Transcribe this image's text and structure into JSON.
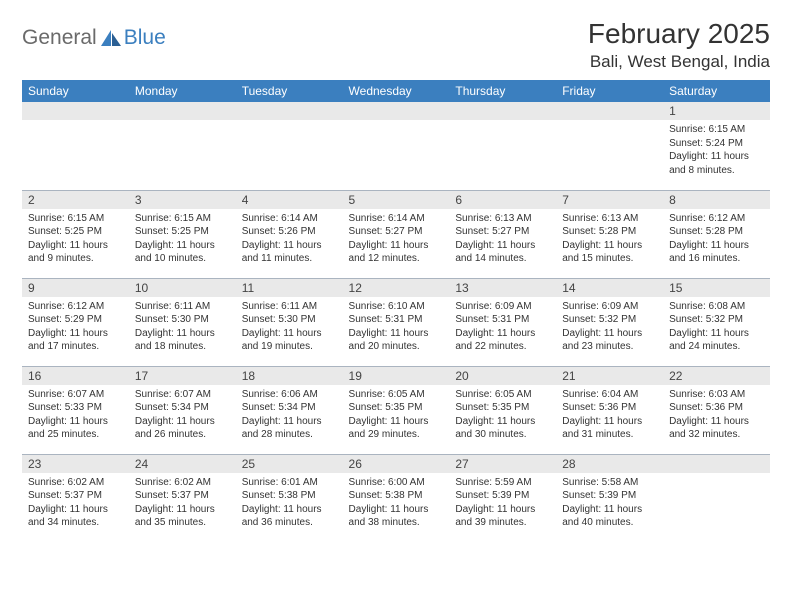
{
  "logo": {
    "word1": "General",
    "word2": "Blue",
    "sail_color": "#3b7fbf"
  },
  "title": "February 2025",
  "location": "Bali, West Bengal, India",
  "colors": {
    "header_bg": "#3b7fbf",
    "header_fg": "#ffffff",
    "daynum_bg": "#e9e9e9",
    "grid_line": "#aab4c0",
    "text": "#333333"
  },
  "day_headers": [
    "Sunday",
    "Monday",
    "Tuesday",
    "Wednesday",
    "Thursday",
    "Friday",
    "Saturday"
  ],
  "weeks": [
    [
      {
        "n": "",
        "lines": [
          "",
          "",
          "",
          ""
        ]
      },
      {
        "n": "",
        "lines": [
          "",
          "",
          "",
          ""
        ]
      },
      {
        "n": "",
        "lines": [
          "",
          "",
          "",
          ""
        ]
      },
      {
        "n": "",
        "lines": [
          "",
          "",
          "",
          ""
        ]
      },
      {
        "n": "",
        "lines": [
          "",
          "",
          "",
          ""
        ]
      },
      {
        "n": "",
        "lines": [
          "",
          "",
          "",
          ""
        ]
      },
      {
        "n": "1",
        "lines": [
          "Sunrise: 6:15 AM",
          "Sunset: 5:24 PM",
          "Daylight: 11 hours",
          "and 8 minutes."
        ]
      }
    ],
    [
      {
        "n": "2",
        "lines": [
          "Sunrise: 6:15 AM",
          "Sunset: 5:25 PM",
          "Daylight: 11 hours",
          "and 9 minutes."
        ]
      },
      {
        "n": "3",
        "lines": [
          "Sunrise: 6:15 AM",
          "Sunset: 5:25 PM",
          "Daylight: 11 hours",
          "and 10 minutes."
        ]
      },
      {
        "n": "4",
        "lines": [
          "Sunrise: 6:14 AM",
          "Sunset: 5:26 PM",
          "Daylight: 11 hours",
          "and 11 minutes."
        ]
      },
      {
        "n": "5",
        "lines": [
          "Sunrise: 6:14 AM",
          "Sunset: 5:27 PM",
          "Daylight: 11 hours",
          "and 12 minutes."
        ]
      },
      {
        "n": "6",
        "lines": [
          "Sunrise: 6:13 AM",
          "Sunset: 5:27 PM",
          "Daylight: 11 hours",
          "and 14 minutes."
        ]
      },
      {
        "n": "7",
        "lines": [
          "Sunrise: 6:13 AM",
          "Sunset: 5:28 PM",
          "Daylight: 11 hours",
          "and 15 minutes."
        ]
      },
      {
        "n": "8",
        "lines": [
          "Sunrise: 6:12 AM",
          "Sunset: 5:28 PM",
          "Daylight: 11 hours",
          "and 16 minutes."
        ]
      }
    ],
    [
      {
        "n": "9",
        "lines": [
          "Sunrise: 6:12 AM",
          "Sunset: 5:29 PM",
          "Daylight: 11 hours",
          "and 17 minutes."
        ]
      },
      {
        "n": "10",
        "lines": [
          "Sunrise: 6:11 AM",
          "Sunset: 5:30 PM",
          "Daylight: 11 hours",
          "and 18 minutes."
        ]
      },
      {
        "n": "11",
        "lines": [
          "Sunrise: 6:11 AM",
          "Sunset: 5:30 PM",
          "Daylight: 11 hours",
          "and 19 minutes."
        ]
      },
      {
        "n": "12",
        "lines": [
          "Sunrise: 6:10 AM",
          "Sunset: 5:31 PM",
          "Daylight: 11 hours",
          "and 20 minutes."
        ]
      },
      {
        "n": "13",
        "lines": [
          "Sunrise: 6:09 AM",
          "Sunset: 5:31 PM",
          "Daylight: 11 hours",
          "and 22 minutes."
        ]
      },
      {
        "n": "14",
        "lines": [
          "Sunrise: 6:09 AM",
          "Sunset: 5:32 PM",
          "Daylight: 11 hours",
          "and 23 minutes."
        ]
      },
      {
        "n": "15",
        "lines": [
          "Sunrise: 6:08 AM",
          "Sunset: 5:32 PM",
          "Daylight: 11 hours",
          "and 24 minutes."
        ]
      }
    ],
    [
      {
        "n": "16",
        "lines": [
          "Sunrise: 6:07 AM",
          "Sunset: 5:33 PM",
          "Daylight: 11 hours",
          "and 25 minutes."
        ]
      },
      {
        "n": "17",
        "lines": [
          "Sunrise: 6:07 AM",
          "Sunset: 5:34 PM",
          "Daylight: 11 hours",
          "and 26 minutes."
        ]
      },
      {
        "n": "18",
        "lines": [
          "Sunrise: 6:06 AM",
          "Sunset: 5:34 PM",
          "Daylight: 11 hours",
          "and 28 minutes."
        ]
      },
      {
        "n": "19",
        "lines": [
          "Sunrise: 6:05 AM",
          "Sunset: 5:35 PM",
          "Daylight: 11 hours",
          "and 29 minutes."
        ]
      },
      {
        "n": "20",
        "lines": [
          "Sunrise: 6:05 AM",
          "Sunset: 5:35 PM",
          "Daylight: 11 hours",
          "and 30 minutes."
        ]
      },
      {
        "n": "21",
        "lines": [
          "Sunrise: 6:04 AM",
          "Sunset: 5:36 PM",
          "Daylight: 11 hours",
          "and 31 minutes."
        ]
      },
      {
        "n": "22",
        "lines": [
          "Sunrise: 6:03 AM",
          "Sunset: 5:36 PM",
          "Daylight: 11 hours",
          "and 32 minutes."
        ]
      }
    ],
    [
      {
        "n": "23",
        "lines": [
          "Sunrise: 6:02 AM",
          "Sunset: 5:37 PM",
          "Daylight: 11 hours",
          "and 34 minutes."
        ]
      },
      {
        "n": "24",
        "lines": [
          "Sunrise: 6:02 AM",
          "Sunset: 5:37 PM",
          "Daylight: 11 hours",
          "and 35 minutes."
        ]
      },
      {
        "n": "25",
        "lines": [
          "Sunrise: 6:01 AM",
          "Sunset: 5:38 PM",
          "Daylight: 11 hours",
          "and 36 minutes."
        ]
      },
      {
        "n": "26",
        "lines": [
          "Sunrise: 6:00 AM",
          "Sunset: 5:38 PM",
          "Daylight: 11 hours",
          "and 38 minutes."
        ]
      },
      {
        "n": "27",
        "lines": [
          "Sunrise: 5:59 AM",
          "Sunset: 5:39 PM",
          "Daylight: 11 hours",
          "and 39 minutes."
        ]
      },
      {
        "n": "28",
        "lines": [
          "Sunrise: 5:58 AM",
          "Sunset: 5:39 PM",
          "Daylight: 11 hours",
          "and 40 minutes."
        ]
      },
      {
        "n": "",
        "lines": [
          "",
          "",
          "",
          ""
        ]
      }
    ]
  ]
}
